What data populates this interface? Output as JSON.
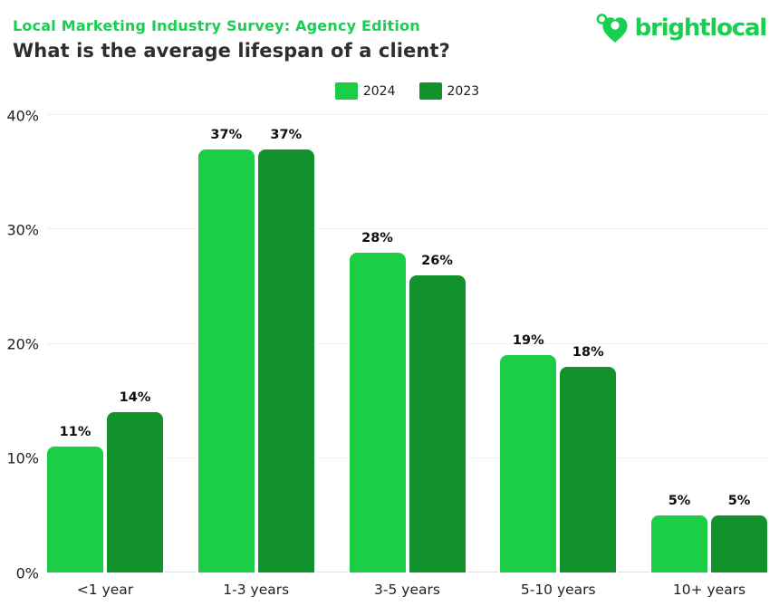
{
  "header": {
    "eyebrow": "Local Marketing Industry Survey: Agency Edition",
    "title": "What is the average lifespan of a client?"
  },
  "logo": {
    "wordmark": "brightlocal",
    "icon": "heart-pin-icon"
  },
  "colors": {
    "brand_green": "#15D14E",
    "series_2024": "#1BCE46",
    "series_2023": "#12922C",
    "title_text": "#2E2E2E",
    "gridline": "#EFEFEF",
    "axis_line": "#DEDEDE",
    "label_text": "#1D1D1D"
  },
  "chart_data": {
    "type": "bar",
    "title": "What is the average lifespan of a client?",
    "categories": [
      "<1 year",
      "1-3 years",
      "3-5 years",
      "5-10 years",
      "10+ years"
    ],
    "series": [
      {
        "name": "2024",
        "color": "#1BCE46",
        "values": [
          11,
          37,
          28,
          19,
          5
        ]
      },
      {
        "name": "2023",
        "color": "#12922C",
        "values": [
          14,
          37,
          26,
          18,
          5
        ]
      }
    ],
    "xlabel": "",
    "ylabel": "",
    "ylim": [
      0,
      40
    ],
    "ytick_step": 10,
    "ytick_labels": [
      "0%",
      "10%",
      "20%",
      "30%",
      "40%"
    ],
    "value_label_suffix": "%",
    "grid": true,
    "legend_position": "top-center"
  }
}
